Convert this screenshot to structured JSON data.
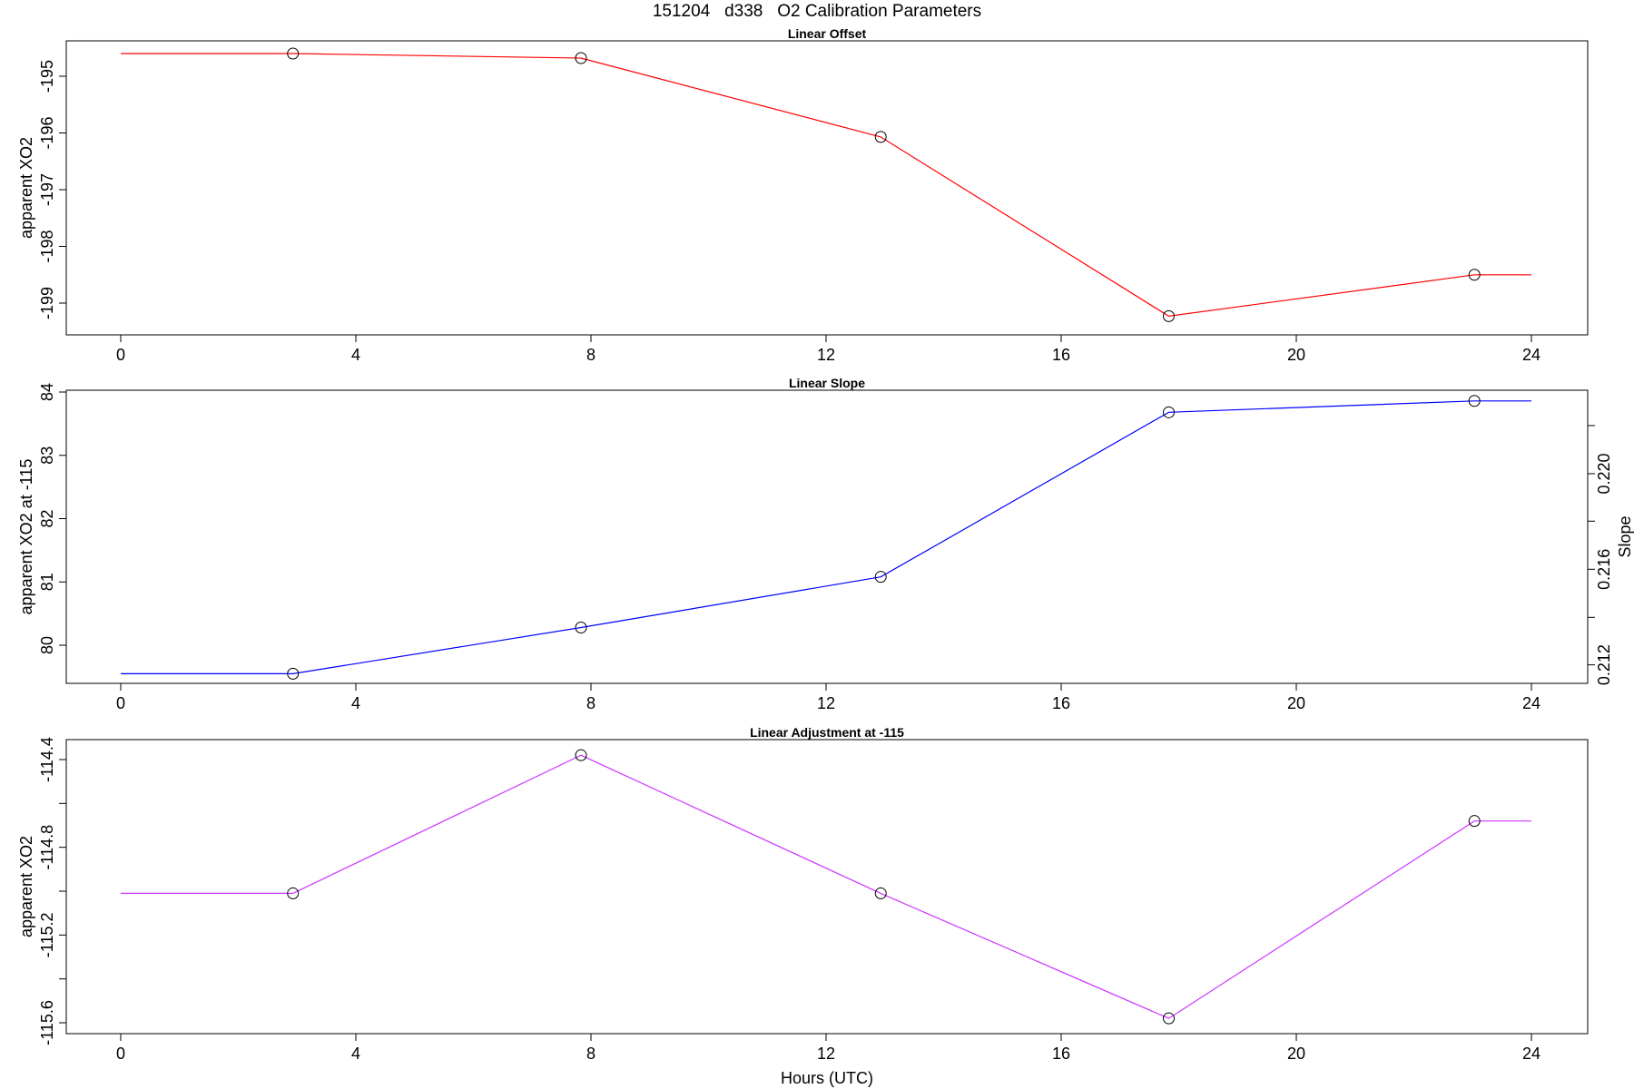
{
  "figure": {
    "title": "151204   d338   O2 Calibration Parameters",
    "xlabel": "Hours (UTC)"
  },
  "chart_data": [
    {
      "type": "line",
      "title": "Linear Offset",
      "xlabel": "",
      "ylabel": "apparent XO2",
      "xlim": [
        0,
        24
      ],
      "ylim": [
        -199.4,
        -194.4
      ],
      "xticks": [
        0,
        4,
        8,
        12,
        16,
        20,
        24
      ],
      "yticks": [
        -199,
        -198,
        -197,
        -196,
        -195
      ],
      "color": "#ff0000",
      "series": [
        {
          "x": [
            0,
            2.93,
            7.83,
            12.93,
            17.83,
            23.03,
            24
          ],
          "y": [
            -194.6,
            -194.6,
            -194.68,
            -196.07,
            -199.23,
            -198.5,
            -198.5
          ]
        }
      ],
      "markers": [
        {
          "x": 2.93,
          "y": -194.6
        },
        {
          "x": 7.83,
          "y": -194.68
        },
        {
          "x": 12.93,
          "y": -196.07
        },
        {
          "x": 17.83,
          "y": -199.23
        },
        {
          "x": 23.03,
          "y": -198.5
        }
      ]
    },
    {
      "type": "line",
      "title": "Linear Slope",
      "xlabel": "",
      "ylabel": "apparent XO2 at -115",
      "y2label": "Slope",
      "xlim": [
        0,
        24
      ],
      "ylim": [
        79.4,
        84
      ],
      "xticks": [
        0,
        4,
        8,
        12,
        16,
        20,
        24
      ],
      "yticks": [
        80,
        81,
        82,
        83,
        84
      ],
      "y2ticks": [
        "0.212",
        "0.216",
        "0.220"
      ],
      "y2tick_positions": [
        79.69,
        81.2,
        82.71
      ],
      "y2minor_positions": [
        80.44,
        81.96,
        83.47
      ],
      "color": "#0000ff",
      "series": [
        {
          "x": [
            0,
            2.93,
            7.83,
            12.93,
            17.83,
            23.03,
            24
          ],
          "y": [
            79.55,
            79.55,
            80.28,
            81.08,
            83.68,
            83.86,
            83.86
          ]
        }
      ],
      "markers": [
        {
          "x": 2.93,
          "y": 79.55
        },
        {
          "x": 7.83,
          "y": 80.28
        },
        {
          "x": 12.93,
          "y": 81.08
        },
        {
          "x": 17.83,
          "y": 83.68
        },
        {
          "x": 23.03,
          "y": 83.86
        }
      ]
    },
    {
      "type": "line",
      "title": "Linear Adjustment at -115",
      "xlabel": "Hours (UTC)",
      "ylabel": "apparent XO2",
      "xlim": [
        0,
        24
      ],
      "ylim": [
        -115.64,
        -114.36
      ],
      "xticks": [
        0,
        4,
        8,
        12,
        16,
        20,
        24
      ],
      "yticks": [
        "-114.4",
        "-114.8",
        "-115.2",
        "-115.6"
      ],
      "ytick_values": [
        -114.4,
        -114.8,
        -115.2,
        -115.6
      ],
      "yminor_values": [
        -114.6,
        -115.0,
        -115.4
      ],
      "color": "#cc33ff",
      "series": [
        {
          "x": [
            0,
            2.93,
            7.83,
            12.93,
            17.83,
            23.03,
            24
          ],
          "y": [
            -115.01,
            -115.01,
            -114.38,
            -115.01,
            -115.58,
            -114.68,
            -114.68
          ]
        }
      ],
      "markers": [
        {
          "x": 2.93,
          "y": -115.01
        },
        {
          "x": 7.83,
          "y": -114.38
        },
        {
          "x": 12.93,
          "y": -115.01
        },
        {
          "x": 17.83,
          "y": -115.58
        },
        {
          "x": 23.03,
          "y": -114.68
        }
      ]
    }
  ]
}
